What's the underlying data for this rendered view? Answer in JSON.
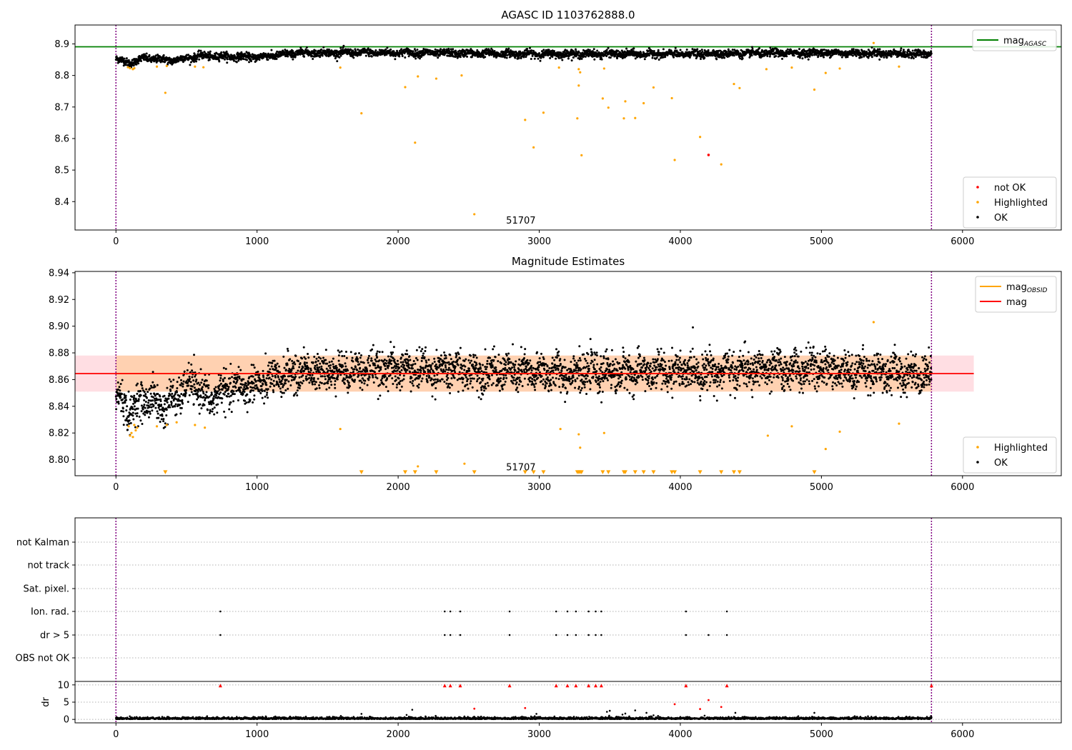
{
  "figure": {
    "title_top": "AGASC ID 1103762888.0",
    "title_mid": "Magnitude Estimates"
  },
  "chart_data": [
    {
      "type": "scatter",
      "title": "AGASC ID 1103762888.0",
      "xlim": [
        -290,
        6700
      ],
      "ylim": [
        8.31,
        8.96
      ],
      "xticks": [
        0,
        1000,
        2000,
        3000,
        4000,
        5000,
        6000
      ],
      "yticks": [
        8.4,
        8.5,
        8.6,
        8.7,
        8.8,
        8.9
      ],
      "ytick_labels": [
        "8.4",
        "8.5",
        "8.6",
        "8.7",
        "8.8",
        "8.9"
      ],
      "annotation": "51707",
      "annotation_x": 2870,
      "annotation_y": 8.33,
      "vlines": [
        0,
        5780
      ],
      "vline_color": "#800080",
      "hlines": [
        {
          "name": "mag_AGASC",
          "y": 8.891,
          "color": "#008000"
        }
      ],
      "legend_upper": {
        "placement": "top-right",
        "entries": [
          {
            "label": "mag",
            "sub": "AGASC",
            "color": "#008000",
            "kind": "line"
          }
        ]
      },
      "legend_lower": {
        "placement": "bottom-right",
        "entries": [
          {
            "label": "not OK",
            "color": "#ff0000",
            "kind": "dot"
          },
          {
            "label": "Highlighted",
            "color": "#ffa500",
            "kind": "dot"
          },
          {
            "label": "OK",
            "color": "#000000",
            "kind": "dot"
          }
        ]
      },
      "ok_series": {
        "name": "OK",
        "color": "#000000",
        "x_range": [
          0,
          5780
        ],
        "base": 8.853,
        "segments": [
          {
            "x": 0,
            "y": 8.852
          },
          {
            "x": 100,
            "y": 8.84
          },
          {
            "x": 200,
            "y": 8.855
          },
          {
            "x": 400,
            "y": 8.848
          },
          {
            "x": 600,
            "y": 8.862
          },
          {
            "x": 1000,
            "y": 8.858
          },
          {
            "x": 1300,
            "y": 8.872
          },
          {
            "x": 2000,
            "y": 8.872
          },
          {
            "x": 3000,
            "y": 8.868
          },
          {
            "x": 4000,
            "y": 8.868
          },
          {
            "x": 5000,
            "y": 8.872
          },
          {
            "x": 5780,
            "y": 8.868
          }
        ],
        "spread": 0.011
      },
      "highlighted_series": {
        "name": "Highlighted",
        "color": "#ffa500",
        "points": [
          [
            85,
            8.826
          ],
          [
            100,
            8.823
          ],
          [
            120,
            8.82
          ],
          [
            130,
            8.823
          ],
          [
            290,
            8.828
          ],
          [
            350,
            8.745
          ],
          [
            360,
            8.83
          ],
          [
            560,
            8.828
          ],
          [
            620,
            8.826
          ],
          [
            1590,
            8.825
          ],
          [
            1740,
            8.68
          ],
          [
            2050,
            8.763
          ],
          [
            2120,
            8.587
          ],
          [
            2140,
            8.797
          ],
          [
            2270,
            8.79
          ],
          [
            2450,
            8.8
          ],
          [
            2540,
            8.36
          ],
          [
            2900,
            8.659
          ],
          [
            2960,
            8.572
          ],
          [
            3030,
            8.682
          ],
          [
            3140,
            8.825
          ],
          [
            3270,
            8.664
          ],
          [
            3280,
            8.768
          ],
          [
            3280,
            8.82
          ],
          [
            3290,
            8.81
          ],
          [
            3300,
            8.547
          ],
          [
            3450,
            8.727
          ],
          [
            3460,
            8.822
          ],
          [
            3490,
            8.698
          ],
          [
            3600,
            8.664
          ],
          [
            3610,
            8.718
          ],
          [
            3680,
            8.665
          ],
          [
            3740,
            8.712
          ],
          [
            3810,
            8.762
          ],
          [
            3940,
            8.728
          ],
          [
            3960,
            8.532
          ],
          [
            4140,
            8.605
          ],
          [
            4290,
            8.518
          ],
          [
            4380,
            8.773
          ],
          [
            4420,
            8.76
          ],
          [
            4610,
            8.82
          ],
          [
            4790,
            8.825
          ],
          [
            4950,
            8.755
          ],
          [
            5030,
            8.808
          ],
          [
            5130,
            8.822
          ],
          [
            5370,
            8.903
          ],
          [
            5550,
            8.828
          ]
        ]
      },
      "notok_series": {
        "name": "not OK",
        "color": "#ff0000",
        "points": [
          [
            4200,
            8.548
          ]
        ]
      }
    },
    {
      "type": "scatter",
      "title": "Magnitude Estimates",
      "xlim": [
        -290,
        6700
      ],
      "ylim": [
        8.788,
        8.941
      ],
      "xticks": [
        0,
        1000,
        2000,
        3000,
        4000,
        5000,
        6000
      ],
      "yticks": [
        8.8,
        8.82,
        8.84,
        8.86,
        8.88,
        8.9,
        8.92,
        8.94
      ],
      "ytick_labels": [
        "8.80",
        "8.82",
        "8.84",
        "8.86",
        "8.88",
        "8.90",
        "8.92",
        "8.94"
      ],
      "annotation": "51707",
      "annotation_x": 2870,
      "annotation_y": 8.792,
      "vlines": [
        0,
        5780
      ],
      "band": {
        "y0": 8.851,
        "y1": 8.878,
        "x0": -290,
        "x1": 6080,
        "color": "#ffb6c1"
      },
      "band_obsid": {
        "y0": 8.851,
        "y1": 8.878,
        "x0": 0,
        "x1": 5780,
        "color": "#ffa500"
      },
      "hlines": [
        {
          "name": "mag_OBSID",
          "y": 8.8645,
          "color": "#ffa500",
          "x0": 0,
          "x1": 5780
        },
        {
          "name": "mag",
          "y": 8.8645,
          "color": "#ff0000",
          "x0": -290,
          "x1": 6080
        }
      ],
      "legend_upper": {
        "placement": "top-right",
        "entries": [
          {
            "label": "mag",
            "sub": "OBSID",
            "color": "#ffa500",
            "kind": "line"
          },
          {
            "label": "mag",
            "sub": "",
            "color": "#ff0000",
            "kind": "line"
          }
        ]
      },
      "legend_lower": {
        "placement": "bottom-right",
        "entries": [
          {
            "label": "Highlighted",
            "color": "#ffa500",
            "kind": "dot"
          },
          {
            "label": "OK",
            "color": "#000000",
            "kind": "dot"
          }
        ]
      },
      "ok_series": {
        "name": "OK",
        "color": "#000000",
        "segments": [
          {
            "x": 0,
            "y": 8.848
          },
          {
            "x": 100,
            "y": 8.836
          },
          {
            "x": 200,
            "y": 8.846
          },
          {
            "x": 350,
            "y": 8.84
          },
          {
            "x": 550,
            "y": 8.858
          },
          {
            "x": 650,
            "y": 8.845
          },
          {
            "x": 800,
            "y": 8.853
          },
          {
            "x": 1000,
            "y": 8.856
          },
          {
            "x": 1300,
            "y": 8.866
          },
          {
            "x": 2000,
            "y": 8.868
          },
          {
            "x": 3000,
            "y": 8.865
          },
          {
            "x": 4000,
            "y": 8.866
          },
          {
            "x": 5000,
            "y": 8.868
          },
          {
            "x": 5780,
            "y": 8.864
          }
        ],
        "spread": 0.009
      },
      "highlighted_series": {
        "name": "Highlighted",
        "color": "#ffa500",
        "points": [
          [
            90,
            8.825
          ],
          [
            100,
            8.818
          ],
          [
            110,
            8.82
          ],
          [
            120,
            8.817
          ],
          [
            130,
            8.826
          ],
          [
            140,
            8.822
          ],
          [
            150,
            8.824
          ],
          [
            290,
            8.825
          ],
          [
            360,
            8.826
          ],
          [
            430,
            8.828
          ],
          [
            560,
            8.826
          ],
          [
            630,
            8.824
          ],
          [
            1590,
            8.823
          ],
          [
            2140,
            8.795
          ],
          [
            2470,
            8.797
          ],
          [
            3150,
            8.823
          ],
          [
            3280,
            8.819
          ],
          [
            3290,
            8.809
          ],
          [
            3460,
            8.82
          ],
          [
            4620,
            8.818
          ],
          [
            4790,
            8.825
          ],
          [
            5030,
            8.808
          ],
          [
            5130,
            8.821
          ],
          [
            5370,
            8.903
          ],
          [
            5550,
            8.827
          ]
        ]
      },
      "highlighted_markers": {
        "name": "Highlighted",
        "color": "#ffa500",
        "y": 8.7905,
        "x": [
          350,
          1740,
          2050,
          2120,
          2270,
          2540,
          2900,
          2960,
          3030,
          3270,
          3280,
          3290,
          3300,
          3450,
          3490,
          3600,
          3610,
          3680,
          3740,
          3810,
          3940,
          3960,
          4140,
          4290,
          4380,
          4420,
          4950
        ]
      }
    },
    {
      "type": "scatter",
      "title": "",
      "xlim": [
        -290,
        6700
      ],
      "xticks": [
        0,
        1000,
        2000,
        3000,
        4000,
        5000,
        6000
      ],
      "flag_labels": [
        "not Kalman",
        "not track",
        "Sat. pixel.",
        "Ion. rad.",
        "dr > 5",
        "OBS not OK"
      ],
      "flags": {
        "Ion. rad.": [
          740,
          2330,
          2370,
          2440,
          2790,
          3120,
          3200,
          3260,
          3350,
          3400,
          3440,
          4040,
          4330
        ],
        "dr > 5": [
          740,
          2330,
          2370,
          2440,
          2790,
          3120,
          3200,
          3260,
          3350,
          3400,
          3440,
          4040,
          4200,
          4330
        ]
      },
      "vlines": [
        0,
        5780
      ],
      "dr_ylabel": "dr",
      "dr_ylim": [
        -1,
        11
      ],
      "dr_yticks": [
        0,
        5,
        10
      ],
      "dr_ytick_labels": [
        "0",
        "5",
        "10"
      ],
      "dr_clip_points": {
        "color": "#ff0000",
        "y": 9.8,
        "x": [
          740,
          2330,
          2370,
          2440,
          2790,
          3120,
          3200,
          3260,
          3350,
          3400,
          3440,
          4040,
          4330,
          5780
        ]
      },
      "dr_red_points": {
        "color": "#ff0000",
        "points": [
          [
            2540,
            3.1
          ],
          [
            2900,
            3.3
          ],
          [
            3960,
            4.4
          ],
          [
            4140,
            3.0
          ],
          [
            4200,
            5.6
          ],
          [
            4290,
            3.6
          ]
        ]
      },
      "dr_black_outliers": {
        "color": "#000000",
        "points": [
          [
            2100,
            2.8
          ],
          [
            2060,
            1.3
          ],
          [
            1740,
            1.6
          ],
          [
            2980,
            1.6
          ],
          [
            3480,
            2.2
          ],
          [
            3500,
            2.5
          ],
          [
            3680,
            2.6
          ],
          [
            3760,
            1.9
          ],
          [
            3810,
            1.2
          ],
          [
            4390,
            1.9
          ],
          [
            4950,
            1.9
          ],
          [
            3590,
            1.4
          ],
          [
            3610,
            1.7
          ]
        ]
      },
      "dr_base": {
        "color": "#000000",
        "x_range": [
          0,
          5780
        ],
        "typical": 0.35
      }
    }
  ]
}
